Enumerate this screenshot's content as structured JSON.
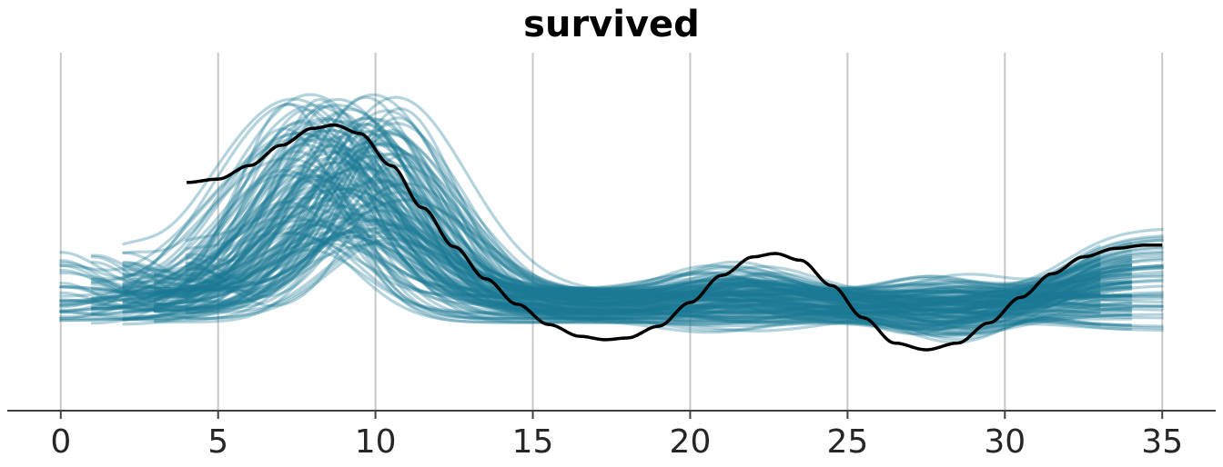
{
  "chart_data": {
    "type": "line",
    "title": "survived",
    "xlabel": "",
    "ylabel": "",
    "xlim": [
      -1.7,
      36.7
    ],
    "ylim": [
      -0.2,
      1.95
    ],
    "xticks": [
      0,
      5,
      10,
      15,
      20,
      25,
      30,
      35
    ],
    "xtick_labels": [
      "0",
      "5",
      "10",
      "15",
      "20",
      "25",
      "30",
      "35"
    ],
    "grid": "vertical",
    "y_axis_visible": false,
    "colors": {
      "samples": "#1b7a94",
      "mean": "#000000",
      "grid": "#c8c8c8",
      "axis": "#404040"
    },
    "sample_curves": {
      "count": 140,
      "opacity": 0.33,
      "start_x_values": [
        0,
        1,
        2,
        3,
        4
      ],
      "end_x_values": [
        33,
        34,
        35
      ],
      "peak_x_range": [
        7,
        11
      ],
      "y_range": [
        0.1,
        1.9
      ]
    },
    "series": [
      {
        "x": [
          4,
          5,
          6,
          7,
          8,
          8.7,
          9.5,
          10.5,
          11.5,
          12.5,
          13.5,
          14.5,
          15.5,
          16.5,
          17.3,
          18,
          19,
          20,
          21,
          22,
          22.7,
          23.5,
          24.5,
          25.5,
          26.5,
          27.5,
          28.5,
          29.5,
          30.5,
          31.5,
          32.5,
          33.5,
          34.5,
          35
        ],
        "y": [
          1.15,
          1.17,
          1.25,
          1.37,
          1.47,
          1.49,
          1.44,
          1.25,
          1.0,
          0.77,
          0.58,
          0.43,
          0.31,
          0.24,
          0.22,
          0.23,
          0.3,
          0.44,
          0.6,
          0.71,
          0.73,
          0.69,
          0.54,
          0.35,
          0.2,
          0.16,
          0.2,
          0.32,
          0.47,
          0.61,
          0.71,
          0.76,
          0.78,
          0.78
        ]
      }
    ]
  }
}
